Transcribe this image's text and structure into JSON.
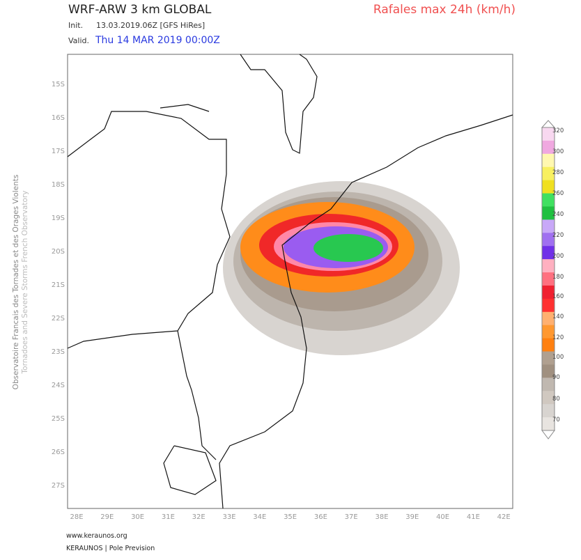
{
  "header": {
    "model": "WRF-ARW 3 km GLOBAL",
    "field": "Rafales max 24h (km/h)",
    "init_label": "Init.",
    "init": "13.03.2019.06Z [GFS HiRes]",
    "valid_label": "Valid.",
    "valid": "Thu 14 MAR 2019 00:00Z"
  },
  "side": {
    "french": "Observatoire Francais des Tornades et des Orages Violents",
    "english": "Tornadoes and Severe Storms French Observatory"
  },
  "map": {
    "lat_labels": [
      "15S",
      "16S",
      "17S",
      "18S",
      "19S",
      "20S",
      "21S",
      "22S",
      "23S",
      "24S",
      "25S",
      "26S",
      "27S"
    ],
    "lon_labels": [
      "28E",
      "29E",
      "30E",
      "31E",
      "32E",
      "33E",
      "34E",
      "35E",
      "36E",
      "37E",
      "38E",
      "39E",
      "40E",
      "41E",
      "42E"
    ]
  },
  "legend": {
    "labels": [
      320,
      300,
      280,
      260,
      240,
      220,
      200,
      180,
      160,
      140,
      120,
      100,
      90,
      80,
      70
    ]
  },
  "footer": {
    "site": "www.keraunos.org",
    "credit": "KERAUNOS | Pole Prevision"
  }
}
